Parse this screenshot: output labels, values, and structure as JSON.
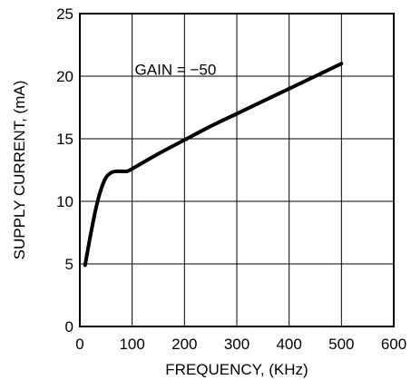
{
  "chart_data": {
    "type": "line",
    "xlabel": "FREQUENCY, (KHz)",
    "ylabel": "SUPPLY CURRENT, (mA)",
    "xlim": [
      0,
      600
    ],
    "ylim": [
      0,
      25
    ],
    "xticks": [
      0,
      100,
      200,
      300,
      400,
      500,
      600
    ],
    "yticks": [
      0,
      5,
      10,
      15,
      20,
      25
    ],
    "grid": true,
    "annotations": [
      {
        "text": "GAIN = −50",
        "x": 105,
        "y": 20.1
      }
    ],
    "series": [
      {
        "x": [
          10,
          20,
          30,
          40,
          50,
          60,
          70,
          80,
          90,
          100,
          150,
          200,
          250,
          300,
          350,
          400,
          450,
          500
        ],
        "y": [
          4.9,
          7.2,
          9.3,
          10.9,
          11.9,
          12.3,
          12.4,
          12.4,
          12.4,
          12.6,
          13.8,
          14.9,
          16.0,
          17.0,
          18.0,
          19.0,
          20.0,
          21.0
        ]
      }
    ]
  }
}
